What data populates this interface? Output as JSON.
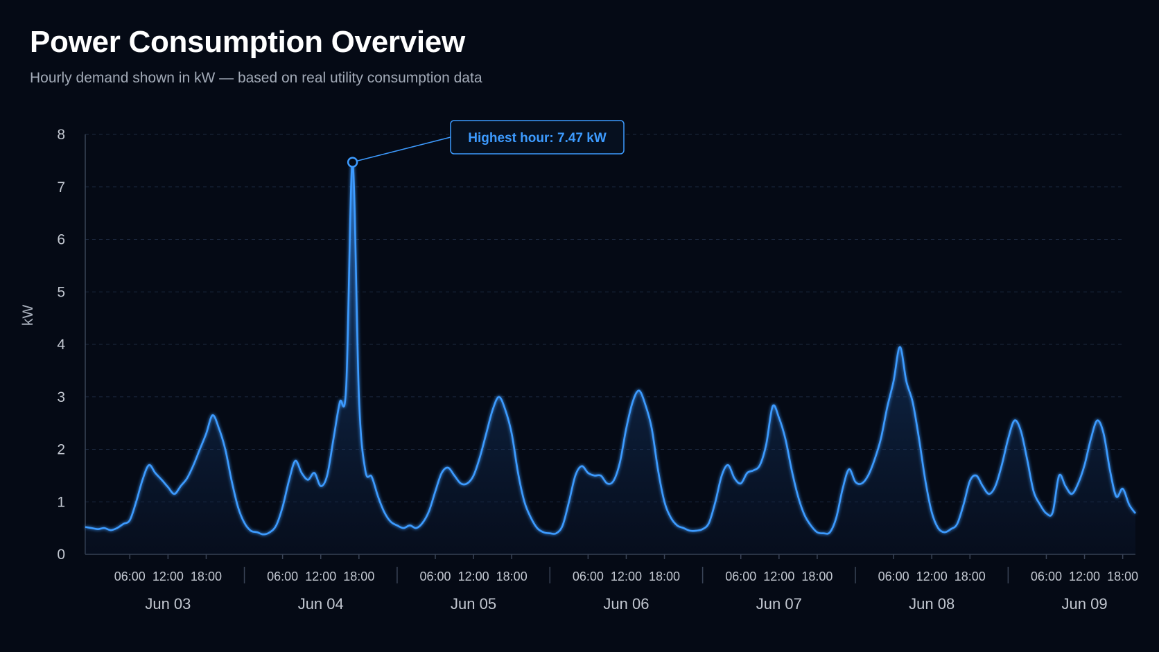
{
  "header": {
    "title": "Power Consumption Overview",
    "subtitle": "Hourly demand shown in kW — based on real utility consumption data"
  },
  "colors": {
    "background": "#050a15",
    "line": "#3d9bff",
    "grid": "#1d2940",
    "axis": "#3a4457",
    "text": "#c3c8d1"
  },
  "chart_data": {
    "type": "area",
    "title": "Power Consumption Overview",
    "ylabel": "kW",
    "xlabel": "",
    "ylim": [
      0,
      8
    ],
    "y_ticks": [
      0,
      1,
      2,
      3,
      4,
      5,
      6,
      7,
      8
    ],
    "grid": true,
    "x_start": "2023-06-02T23:00",
    "x_end": "2023-06-09T20:00",
    "x_tick_labels": [
      "06:00",
      "12:00",
      "18:00"
    ],
    "day_labels": [
      "Jun 03",
      "Jun 04",
      "Jun 05",
      "Jun 06",
      "Jun 07",
      "Jun 08",
      "Jun 09"
    ],
    "series": [
      {
        "points": [
          [
            "2023-06-02T23:00",
            0.52
          ],
          [
            "2023-06-03T00:00",
            0.5
          ],
          [
            "2023-06-03T01:00",
            0.48
          ],
          [
            "2023-06-03T02:00",
            0.5
          ],
          [
            "2023-06-03T03:00",
            0.46
          ],
          [
            "2023-06-03T04:00",
            0.5
          ],
          [
            "2023-06-03T05:00",
            0.58
          ],
          [
            "2023-06-03T06:00",
            0.65
          ],
          [
            "2023-06-03T07:00",
            1.0
          ],
          [
            "2023-06-03T08:00",
            1.42
          ],
          [
            "2023-06-03T09:00",
            1.7
          ],
          [
            "2023-06-03T10:00",
            1.55
          ],
          [
            "2023-06-03T11:00",
            1.42
          ],
          [
            "2023-06-03T12:00",
            1.28
          ],
          [
            "2023-06-03T13:00",
            1.15
          ],
          [
            "2023-06-03T14:00",
            1.3
          ],
          [
            "2023-06-03T15:00",
            1.45
          ],
          [
            "2023-06-03T16:00",
            1.7
          ],
          [
            "2023-06-03T17:00",
            2.0
          ],
          [
            "2023-06-03T18:00",
            2.3
          ],
          [
            "2023-06-03T19:00",
            2.65
          ],
          [
            "2023-06-03T20:00",
            2.4
          ],
          [
            "2023-06-03T21:00",
            2.0
          ],
          [
            "2023-06-03T22:00",
            1.4
          ],
          [
            "2023-06-03T23:00",
            0.9
          ],
          [
            "2023-06-04T00:00",
            0.6
          ],
          [
            "2023-06-04T01:00",
            0.45
          ],
          [
            "2023-06-04T02:00",
            0.42
          ],
          [
            "2023-06-04T03:00",
            0.38
          ],
          [
            "2023-06-04T04:00",
            0.42
          ],
          [
            "2023-06-04T05:00",
            0.55
          ],
          [
            "2023-06-04T06:00",
            0.9
          ],
          [
            "2023-06-04T07:00",
            1.4
          ],
          [
            "2023-06-04T08:00",
            1.78
          ],
          [
            "2023-06-04T09:00",
            1.55
          ],
          [
            "2023-06-04T10:00",
            1.42
          ],
          [
            "2023-06-04T11:00",
            1.55
          ],
          [
            "2023-06-04T12:00",
            1.3
          ],
          [
            "2023-06-04T13:00",
            1.5
          ],
          [
            "2023-06-04T14:00",
            2.2
          ],
          [
            "2023-06-04T15:00",
            2.9
          ],
          [
            "2023-06-04T16:00",
            3.2
          ],
          [
            "2023-06-04T17:00",
            7.47
          ],
          [
            "2023-06-04T18:00",
            3.0
          ],
          [
            "2023-06-04T19:00",
            1.6
          ],
          [
            "2023-06-04T20:00",
            1.48
          ],
          [
            "2023-06-04T21:00",
            1.1
          ],
          [
            "2023-06-04T22:00",
            0.8
          ],
          [
            "2023-06-04T23:00",
            0.62
          ],
          [
            "2023-06-05T00:00",
            0.55
          ],
          [
            "2023-06-05T01:00",
            0.5
          ],
          [
            "2023-06-05T02:00",
            0.55
          ],
          [
            "2023-06-05T03:00",
            0.5
          ],
          [
            "2023-06-05T04:00",
            0.6
          ],
          [
            "2023-06-05T05:00",
            0.82
          ],
          [
            "2023-06-05T06:00",
            1.2
          ],
          [
            "2023-06-05T07:00",
            1.55
          ],
          [
            "2023-06-05T08:00",
            1.65
          ],
          [
            "2023-06-05T09:00",
            1.5
          ],
          [
            "2023-06-05T10:00",
            1.35
          ],
          [
            "2023-06-05T11:00",
            1.35
          ],
          [
            "2023-06-05T12:00",
            1.5
          ],
          [
            "2023-06-05T13:00",
            1.85
          ],
          [
            "2023-06-05T14:00",
            2.3
          ],
          [
            "2023-06-05T15:00",
            2.75
          ],
          [
            "2023-06-05T16:00",
            3.0
          ],
          [
            "2023-06-05T17:00",
            2.75
          ],
          [
            "2023-06-05T18:00",
            2.3
          ],
          [
            "2023-06-05T19:00",
            1.55
          ],
          [
            "2023-06-05T20:00",
            1.0
          ],
          [
            "2023-06-05T21:00",
            0.7
          ],
          [
            "2023-06-05T22:00",
            0.5
          ],
          [
            "2023-06-05T23:00",
            0.42
          ],
          [
            "2023-06-06T00:00",
            0.4
          ],
          [
            "2023-06-06T01:00",
            0.4
          ],
          [
            "2023-06-06T02:00",
            0.55
          ],
          [
            "2023-06-06T03:00",
            1.0
          ],
          [
            "2023-06-06T04:00",
            1.5
          ],
          [
            "2023-06-06T05:00",
            1.68
          ],
          [
            "2023-06-06T06:00",
            1.55
          ],
          [
            "2023-06-06T07:00",
            1.5
          ],
          [
            "2023-06-06T08:00",
            1.5
          ],
          [
            "2023-06-06T09:00",
            1.35
          ],
          [
            "2023-06-06T10:00",
            1.4
          ],
          [
            "2023-06-06T11:00",
            1.75
          ],
          [
            "2023-06-06T12:00",
            2.4
          ],
          [
            "2023-06-06T13:00",
            2.9
          ],
          [
            "2023-06-06T14:00",
            3.12
          ],
          [
            "2023-06-06T15:00",
            2.85
          ],
          [
            "2023-06-06T16:00",
            2.4
          ],
          [
            "2023-06-06T17:00",
            1.6
          ],
          [
            "2023-06-06T18:00",
            1.0
          ],
          [
            "2023-06-06T19:00",
            0.7
          ],
          [
            "2023-06-06T20:00",
            0.55
          ],
          [
            "2023-06-06T21:00",
            0.5
          ],
          [
            "2023-06-06T22:00",
            0.45
          ],
          [
            "2023-06-06T23:00",
            0.45
          ],
          [
            "2023-06-07T00:00",
            0.48
          ],
          [
            "2023-06-07T01:00",
            0.6
          ],
          [
            "2023-06-07T02:00",
            1.0
          ],
          [
            "2023-06-07T03:00",
            1.5
          ],
          [
            "2023-06-07T04:00",
            1.7
          ],
          [
            "2023-06-07T05:00",
            1.45
          ],
          [
            "2023-06-07T06:00",
            1.35
          ],
          [
            "2023-06-07T07:00",
            1.55
          ],
          [
            "2023-06-07T08:00",
            1.6
          ],
          [
            "2023-06-07T09:00",
            1.7
          ],
          [
            "2023-06-07T10:00",
            2.1
          ],
          [
            "2023-06-07T11:00",
            2.82
          ],
          [
            "2023-06-07T12:00",
            2.6
          ],
          [
            "2023-06-07T13:00",
            2.2
          ],
          [
            "2023-06-07T14:00",
            1.6
          ],
          [
            "2023-06-07T15:00",
            1.1
          ],
          [
            "2023-06-07T16:00",
            0.75
          ],
          [
            "2023-06-07T17:00",
            0.55
          ],
          [
            "2023-06-07T18:00",
            0.42
          ],
          [
            "2023-06-07T19:00",
            0.4
          ],
          [
            "2023-06-07T20:00",
            0.42
          ],
          [
            "2023-06-07T21:00",
            0.7
          ],
          [
            "2023-06-07T22:00",
            1.25
          ],
          [
            "2023-06-07T23:00",
            1.62
          ],
          [
            "2023-06-08T00:00",
            1.38
          ],
          [
            "2023-06-08T01:00",
            1.35
          ],
          [
            "2023-06-08T02:00",
            1.5
          ],
          [
            "2023-06-08T03:00",
            1.8
          ],
          [
            "2023-06-08T04:00",
            2.2
          ],
          [
            "2023-06-08T05:00",
            2.8
          ],
          [
            "2023-06-08T06:00",
            3.3
          ],
          [
            "2023-06-08T07:00",
            3.95
          ],
          [
            "2023-06-08T08:00",
            3.3
          ],
          [
            "2023-06-08T09:00",
            2.9
          ],
          [
            "2023-06-08T10:00",
            2.2
          ],
          [
            "2023-06-08T11:00",
            1.4
          ],
          [
            "2023-06-08T12:00",
            0.8
          ],
          [
            "2023-06-08T13:00",
            0.5
          ],
          [
            "2023-06-08T14:00",
            0.42
          ],
          [
            "2023-06-08T15:00",
            0.48
          ],
          [
            "2023-06-08T16:00",
            0.58
          ],
          [
            "2023-06-08T17:00",
            0.95
          ],
          [
            "2023-06-08T18:00",
            1.4
          ],
          [
            "2023-06-08T19:00",
            1.5
          ],
          [
            "2023-06-08T20:00",
            1.3
          ],
          [
            "2023-06-08T21:00",
            1.15
          ],
          [
            "2023-06-08T22:00",
            1.3
          ],
          [
            "2023-06-08T23:00",
            1.7
          ],
          [
            "2023-06-09T00:00",
            2.2
          ],
          [
            "2023-06-09T01:00",
            2.55
          ],
          [
            "2023-06-09T02:00",
            2.35
          ],
          [
            "2023-06-09T03:00",
            1.8
          ],
          [
            "2023-06-09T04:00",
            1.2
          ],
          [
            "2023-06-09T05:00",
            0.95
          ],
          [
            "2023-06-09T06:00",
            0.78
          ],
          [
            "2023-06-09T07:00",
            0.8
          ],
          [
            "2023-06-09T08:00",
            1.5
          ],
          [
            "2023-06-09T09:00",
            1.3
          ],
          [
            "2023-06-09T10:00",
            1.15
          ],
          [
            "2023-06-09T11:00",
            1.35
          ],
          [
            "2023-06-09T12:00",
            1.7
          ],
          [
            "2023-06-09T13:00",
            2.2
          ],
          [
            "2023-06-09T14:00",
            2.55
          ],
          [
            "2023-06-09T15:00",
            2.3
          ],
          [
            "2023-06-09T16:00",
            1.6
          ],
          [
            "2023-06-09T17:00",
            1.1
          ],
          [
            "2023-06-09T18:00",
            1.25
          ],
          [
            "2023-06-09T19:00",
            0.95
          ],
          [
            "2023-06-09T20:00",
            0.78
          ]
        ]
      }
    ],
    "annotation": {
      "text": "Highest hour: 7.47 kW",
      "x": "2023-06-04T17:00",
      "y": 7.47
    }
  }
}
